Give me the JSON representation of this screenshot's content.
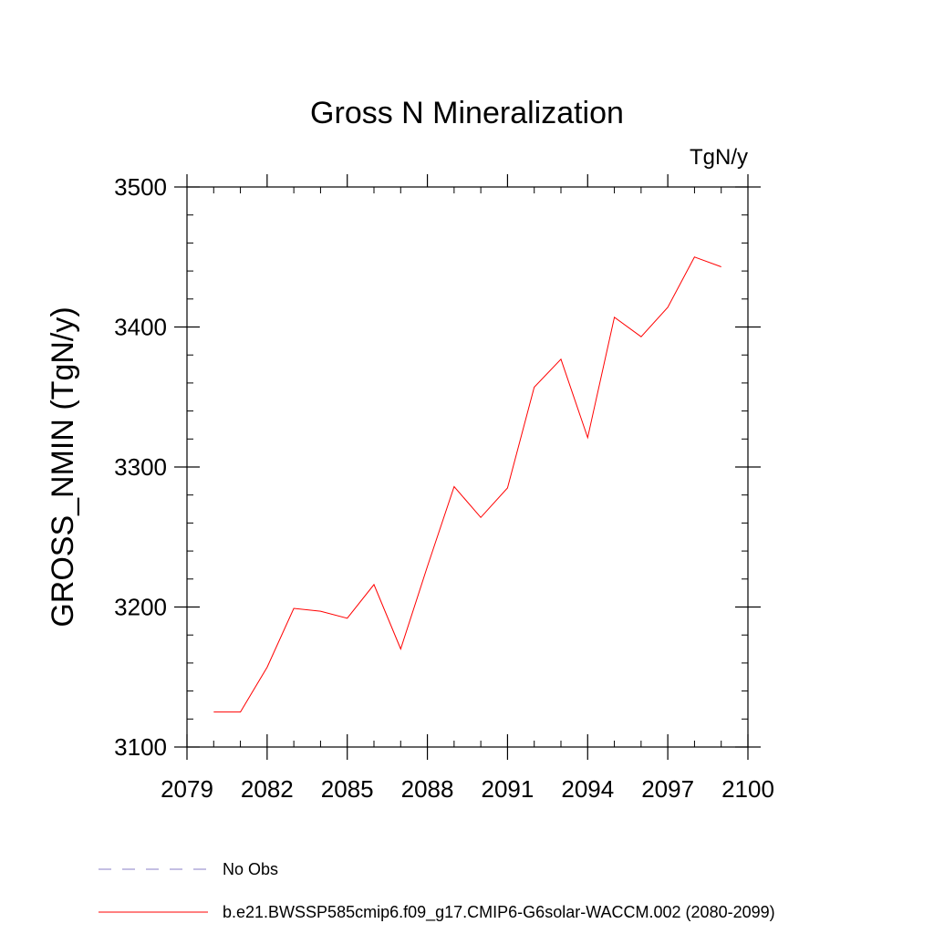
{
  "chart_data": {
    "type": "line",
    "title": "Gross N Mineralization",
    "units_label": "TgN/y",
    "xlabel": "",
    "ylabel": "GROSS_NMIN  (TgN/y)",
    "xlim": [
      2079,
      2100
    ],
    "ylim": [
      3100,
      3500
    ],
    "x_ticks": [
      2079,
      2082,
      2085,
      2088,
      2091,
      2094,
      2097,
      2100
    ],
    "y_ticks": [
      3100,
      3200,
      3300,
      3400,
      3500
    ],
    "x_minor_step": 1,
    "y_minor_step": 20,
    "series": [
      {
        "name": "b.e21.BWSSP585cmip6.f09_g17.CMIP6-G6solar-WACCM.002 (2080-2099)",
        "color": "#ff0000",
        "x": [
          2080,
          2081,
          2082,
          2083,
          2084,
          2085,
          2086,
          2087,
          2088,
          2089,
          2090,
          2091,
          2092,
          2093,
          2094,
          2095,
          2096,
          2097,
          2098,
          2099
        ],
        "y": [
          3125,
          3125,
          3157,
          3199,
          3197,
          3192,
          3216,
          3170,
          3229,
          3286,
          3264,
          3285,
          3357,
          3377,
          3321,
          3407,
          3393,
          3414,
          3450,
          3443
        ]
      }
    ],
    "legend": [
      {
        "label": "No Obs",
        "color": "#8a7fc7",
        "style": "dashed"
      },
      {
        "label": "b.e21.BWSSP585cmip6.f09_g17.CMIP6-G6solar-WACCM.002 (2080-2099)",
        "color": "#ff0000",
        "style": "solid"
      }
    ],
    "legend_position": "bottom-left"
  }
}
